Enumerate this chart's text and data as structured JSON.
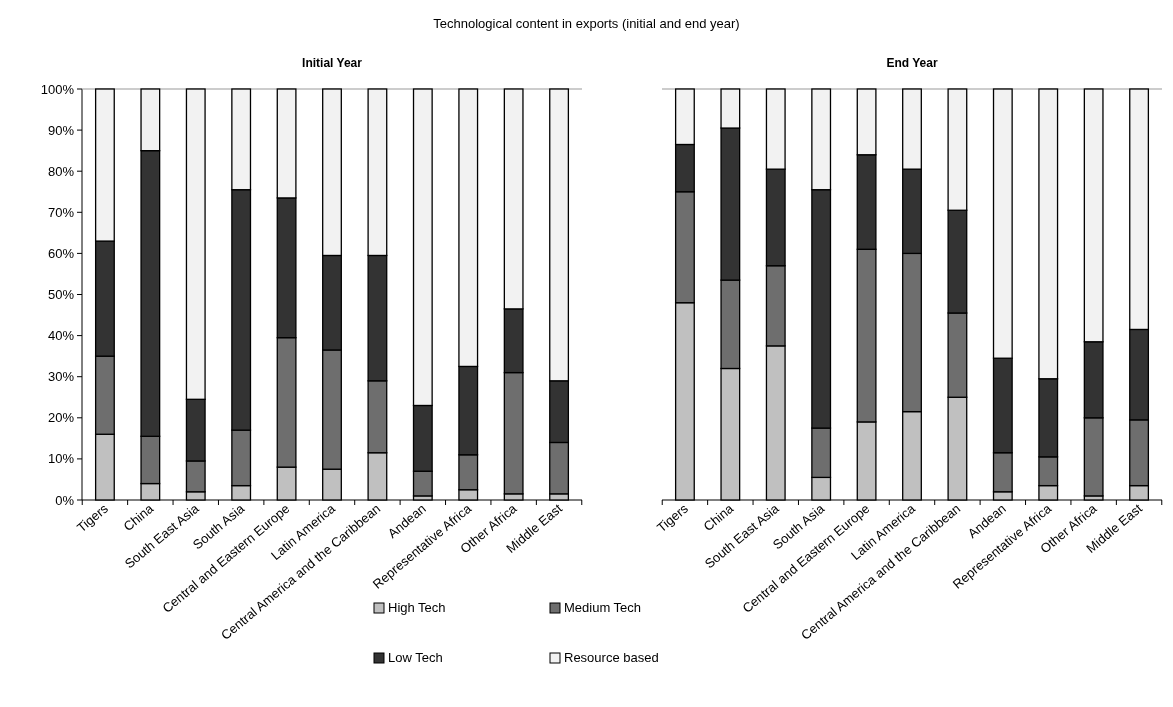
{
  "chart_data": [
    {
      "type": "bar",
      "stacked": true,
      "title": "Technological content in exports (initial and end year)",
      "subtitle": "Initial Year",
      "categories": [
        "Tigers",
        "China",
        "South East Asia",
        "South Asia",
        "Central and Eastern Europe",
        "Latin America",
        "Central America and the Caribbean",
        "Andean",
        "Representative Africa",
        "Other Africa",
        "Middle East"
      ],
      "series": [
        {
          "name": "High Tech",
          "color": "#c0c0c0",
          "values": [
            16,
            4,
            2,
            3.5,
            8,
            7.5,
            11.5,
            1,
            2.5,
            1.5,
            1.5
          ]
        },
        {
          "name": "Medium Tech",
          "color": "#6e6e6e",
          "values": [
            19,
            11.5,
            7.5,
            13.5,
            31.5,
            29,
            17.5,
            6,
            8.5,
            29.5,
            12.5
          ]
        },
        {
          "name": "Low Tech",
          "color": "#333333",
          "values": [
            28,
            69.5,
            15,
            58.5,
            34,
            23,
            30.5,
            16,
            21.5,
            15.5,
            15
          ]
        },
        {
          "name": "Resource based",
          "color": "#f2f2f2",
          "values": [
            37,
            15,
            75.5,
            24.5,
            26.5,
            40.5,
            40.5,
            77,
            67.5,
            53.5,
            71
          ]
        }
      ],
      "ylim": [
        0,
        100
      ],
      "yticks": [
        {
          "value": 0,
          "label": "0%"
        },
        {
          "value": 10,
          "label": "10%"
        },
        {
          "value": 20,
          "label": "20%"
        },
        {
          "value": 30,
          "label": "30%"
        },
        {
          "value": 40,
          "label": "40%"
        },
        {
          "value": 50,
          "label": "50%"
        },
        {
          "value": 60,
          "label": "60%"
        },
        {
          "value": 70,
          "label": "70%"
        },
        {
          "value": 80,
          "label": "80%"
        },
        {
          "value": 90,
          "label": "90%"
        },
        {
          "value": 100,
          "label": "100%"
        }
      ],
      "legend": "bottom"
    },
    {
      "type": "bar",
      "stacked": true,
      "title": "End Year",
      "categories": [
        "Tigers",
        "China",
        "South East Asia",
        "South Asia",
        "Central and Eastern Europe",
        "Latin America",
        "Central America and the Caribbean",
        "Andean",
        "Representative Africa",
        "Other Africa",
        "Middle East"
      ],
      "series": [
        {
          "color": "#c0c0c0",
          "values": [
            48,
            32,
            37.5,
            5.5,
            19,
            21.5,
            25,
            2,
            3.5,
            1,
            3.5
          ]
        },
        {
          "color": "#6e6e6e",
          "values": [
            27,
            21.5,
            19.5,
            12,
            42,
            38.5,
            20.5,
            9.5,
            7,
            19,
            16
          ]
        },
        {
          "color": "#333333",
          "values": [
            11.5,
            37,
            23.5,
            58,
            23,
            20.5,
            25,
            23,
            19,
            18.5,
            22
          ]
        },
        {
          "color": "#f2f2f2",
          "values": [
            13.5,
            9.5,
            19.5,
            24.5,
            16,
            19.5,
            29.5,
            65.5,
            70.5,
            61.5,
            58.5
          ]
        }
      ],
      "ylim": [
        0,
        100
      ],
      "tick_labels": "x"
    }
  ]
}
